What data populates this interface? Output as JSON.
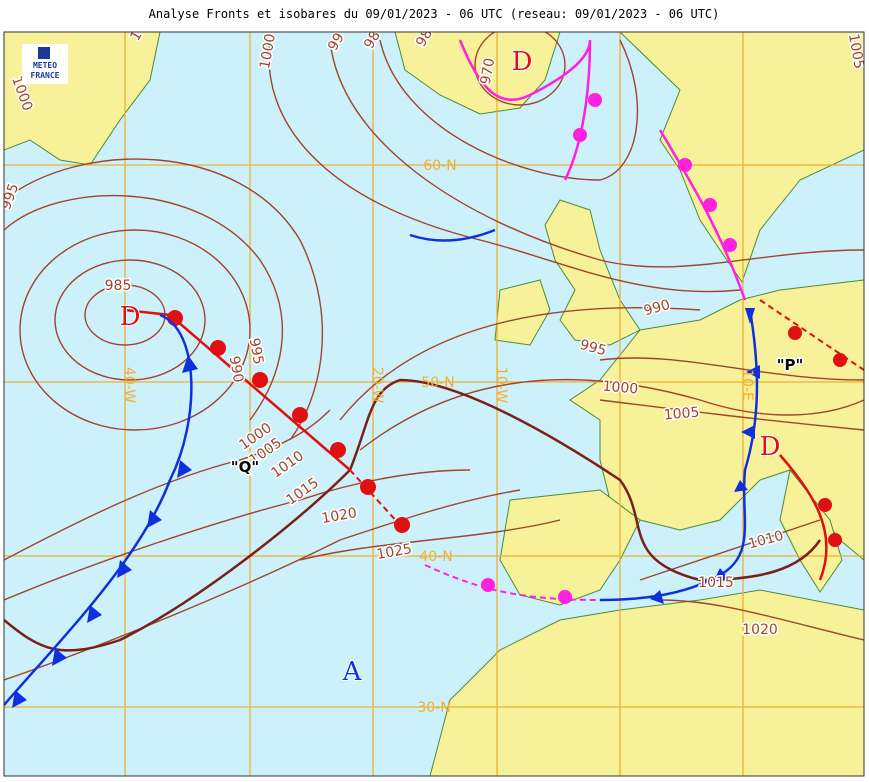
{
  "title": "Analyse Fronts et isobares du 09/01/2023 - 06 UTC (reseau: 09/01/2023 - 06 UTC)",
  "logo": [
    "METEO",
    "FRANCE"
  ],
  "latitude_labels": [
    "60-N",
    "50-N",
    "40-N",
    "30-N"
  ],
  "longitude_labels": [
    "40-W",
    "20-W",
    "10-W",
    "10-E"
  ],
  "isobar_labels": [
    "1000",
    "995",
    "985",
    "990",
    "995",
    "1000",
    "1005",
    "1010",
    "1015",
    "1020",
    "1025",
    "990",
    "995",
    "1000",
    "1005",
    "1010",
    "1015",
    "1020",
    "970",
    "1000",
    "99",
    "98",
    "98",
    "1005",
    "1"
  ],
  "pressure_centers": [
    "D",
    "D",
    "D",
    "A"
  ],
  "front_names": [
    "\"Q\"",
    "\"P\""
  ]
}
